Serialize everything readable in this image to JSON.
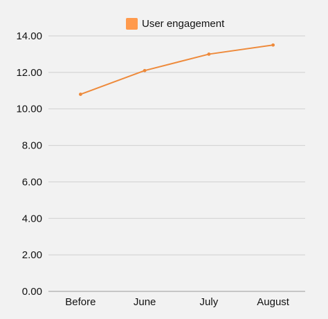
{
  "colors": {
    "background": "#f2f2f2",
    "series": "#ee8a3b",
    "legend_swatch": "#ff9a4d",
    "grid": "#cfcfcf",
    "text": "#111111"
  },
  "chart_data": {
    "type": "line",
    "title": "",
    "xlabel": "",
    "ylabel": "",
    "categories": [
      "Before",
      "June",
      "July",
      "August"
    ],
    "series": [
      {
        "name": "User engagement",
        "values": [
          10.8,
          12.1,
          13.0,
          13.5
        ]
      }
    ],
    "ylim": [
      0,
      14
    ],
    "yticks": [
      "0.00",
      "2.00",
      "4.00",
      "6.00",
      "8.00",
      "10.00",
      "12.00",
      "14.00"
    ],
    "grid": true,
    "legend_position": "top-center"
  }
}
